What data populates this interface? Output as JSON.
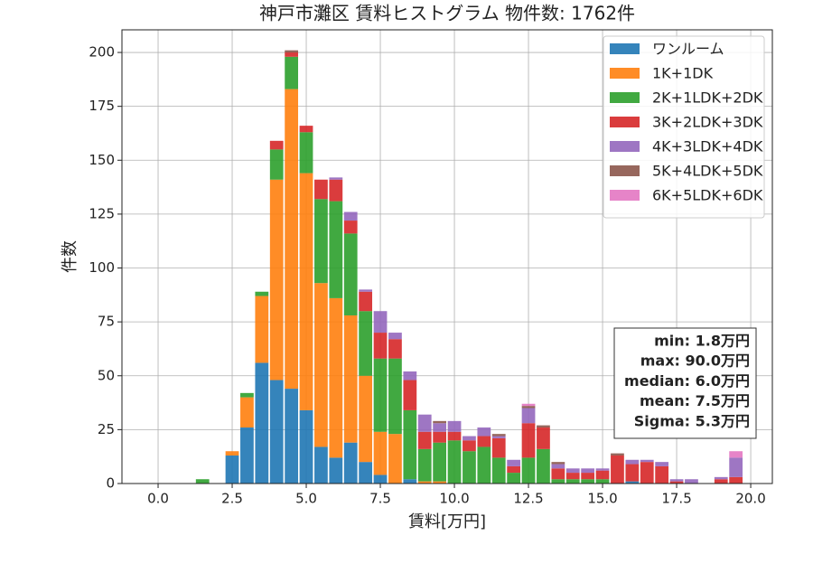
{
  "chart_data": {
    "type": "histogram",
    "title": "神戸市灘区 賃料ヒストグラム 物件数: 1762件",
    "x_label": "賃料[万円]",
    "y_label": "件数",
    "bins": [
      1.25,
      1.75,
      2.25,
      2.75,
      3.25,
      3.75,
      4.25,
      4.75,
      5.25,
      5.75,
      6.25,
      6.75,
      7.25,
      7.75,
      8.25,
      8.75,
      9.25,
      9.75,
      10.25,
      10.75,
      11.25,
      11.75,
      12.25,
      12.75,
      13.25,
      13.75,
      14.25,
      14.75,
      15.25,
      15.75,
      16.25,
      16.75,
      17.25,
      17.75,
      18.25,
      18.75,
      19.25,
      19.75,
      20.25
    ],
    "series": [
      {
        "name": "ワンルーム",
        "color": "#1f77b4",
        "values": [
          0,
          0,
          13,
          26,
          56,
          48,
          44,
          34,
          17,
          12,
          19,
          10,
          4,
          0,
          2,
          0,
          0,
          0,
          0,
          0,
          0,
          0,
          0,
          0,
          0,
          0,
          0,
          0,
          0,
          1,
          0,
          0,
          0,
          0,
          0,
          0,
          0,
          0
        ]
      },
      {
        "name": "1K+1DK",
        "color": "#ff7f0e",
        "values": [
          0,
          0,
          2,
          14,
          31,
          93,
          139,
          110,
          76,
          74,
          59,
          40,
          20,
          23,
          0,
          1,
          1,
          0,
          0,
          0,
          0,
          0,
          0,
          0,
          0,
          0,
          0,
          0,
          0,
          0,
          0,
          0,
          0,
          0,
          0,
          0,
          0,
          0
        ]
      },
      {
        "name": "2K+1LDK+2DK",
        "color": "#2ca02c",
        "values": [
          2,
          0,
          0,
          2,
          2,
          14,
          15,
          19,
          39,
          45,
          38,
          30,
          34,
          35,
          32,
          15,
          18,
          20,
          15,
          17,
          12,
          5,
          12,
          16,
          2,
          2,
          2,
          2,
          0,
          0,
          0,
          0,
          0,
          0,
          0,
          0,
          0,
          0
        ]
      },
      {
        "name": "3K+2LDK+3DK",
        "color": "#d62728",
        "values": [
          0,
          0,
          0,
          0,
          0,
          4,
          2,
          3,
          9,
          10,
          6,
          9,
          12,
          9,
          14,
          8,
          5,
          4,
          5,
          5,
          9,
          3,
          16,
          10,
          5,
          3,
          3,
          4,
          13,
          8,
          10,
          8,
          1,
          0,
          0,
          2,
          3,
          0
        ]
      },
      {
        "name": "4K+3LDK+4DK",
        "color": "#9467bd",
        "values": [
          0,
          0,
          0,
          0,
          0,
          0,
          0,
          0,
          0,
          1,
          4,
          1,
          10,
          3,
          4,
          8,
          4,
          5,
          2,
          4,
          1,
          3,
          7,
          0,
          2,
          2,
          2,
          1,
          0,
          2,
          1,
          2,
          1,
          2,
          0,
          1,
          9,
          0
        ]
      },
      {
        "name": "5K+4LDK+5DK",
        "color": "#8c564b",
        "values": [
          0,
          0,
          0,
          0,
          0,
          0,
          1,
          0,
          0,
          0,
          0,
          0,
          0,
          0,
          0,
          0,
          1,
          0,
          0,
          0,
          1,
          0,
          1,
          1,
          1,
          0,
          0,
          0,
          1,
          0,
          0,
          0,
          0,
          0,
          0,
          0,
          0,
          0
        ]
      },
      {
        "name": "6K+5LDK+6DK",
        "color": "#e377c2",
        "values": [
          0,
          0,
          0,
          0,
          0,
          0,
          0,
          0,
          0,
          0,
          0,
          0,
          0,
          0,
          0,
          0,
          0,
          0,
          0,
          0,
          0,
          0,
          1,
          0,
          0,
          0,
          0,
          0,
          0,
          0,
          0,
          0,
          0,
          0,
          0,
          0,
          3,
          0
        ]
      }
    ],
    "xlim": [
      -1.22,
      20.73
    ],
    "ylim": [
      0,
      210.5
    ],
    "xticks": [
      {
        "value": 0,
        "label": "0.0"
      },
      2.5,
      {
        "value": 5,
        "label": "5.0"
      },
      7.5,
      {
        "value": 10,
        "label": "10.0"
      },
      12.5,
      {
        "value": 15,
        "label": "15.0"
      },
      17.5,
      {
        "value": 20,
        "label": "20.0"
      }
    ],
    "yticks": [
      0,
      25,
      50,
      75,
      100,
      125,
      150,
      175,
      200
    ],
    "grid": true,
    "legend": "upper right",
    "rwidth": 0.9,
    "annotations": [
      "min: 1.8万円",
      "max: 90.0万円",
      "median: 6.0万円",
      "mean: 7.5万円",
      "Sigma: 5.3万円"
    ]
  }
}
